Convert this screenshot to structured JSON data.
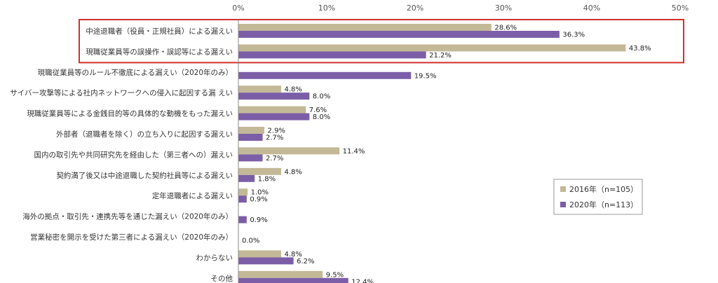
{
  "chart_data": {
    "type": "bar",
    "orientation": "horizontal",
    "title": "",
    "xlabel": "",
    "ylabel": "",
    "xlim": [
      0,
      50
    ],
    "x_ticks": [
      "0%",
      "10%",
      "20%",
      "30%",
      "40%",
      "50%"
    ],
    "grid": false,
    "legend_position": "right",
    "categories": [
      "中途退職者（役員・正規社員）による漏えい",
      "現職従業員等の誤操作・誤認等による漏えい",
      "現職従業員等のルール不徹底による漏えい（2020年のみ）",
      "サイバー攻撃等による社内ネットワークへの侵入に起因する漏 えい",
      "現職従業員等による金銭目的等の具体的な動機をもった漏えい",
      "外部者（退職者を除く）の立ち入りに起因する漏えい",
      "国内の取引先や共同研究先を経由した（第三者への）漏えい",
      "契約満了後又は中途退職した契約社員等による漏えい",
      "定年退職者による漏えい",
      "海外の拠点・取引先・連携先等を通じた漏えい（2020年のみ）",
      "営業秘密を開示を受けた第三者による漏えい（2020年のみ）",
      "わからない",
      "その他"
    ],
    "series": [
      {
        "name": "2016年（n=105）",
        "color": "#c3b997",
        "values": [
          28.6,
          43.8,
          null,
          4.8,
          7.6,
          2.9,
          11.4,
          4.8,
          1.0,
          null,
          null,
          4.8,
          9.5
        ],
        "labels": [
          "28.6%",
          "43.8%",
          "",
          "4.8%",
          "7.6%",
          "2.9%",
          "11.4%",
          "4.8%",
          "1.0%",
          "",
          "",
          "4.8%",
          "9.5%"
        ]
      },
      {
        "name": "2020年（n=113）",
        "color": "#7b5ea7",
        "values": [
          36.3,
          21.2,
          19.5,
          8.0,
          8.0,
          2.7,
          2.7,
          1.8,
          0.9,
          0.9,
          0.0,
          6.2,
          12.4
        ],
        "labels": [
          "36.3%",
          "21.2%",
          "19.5%",
          "8.0%",
          "8.0%",
          "2.7%",
          "2.7%",
          "1.8%",
          "0.9%",
          "0.9%",
          "0.0%",
          "6.2%",
          "12.4%"
        ]
      }
    ],
    "highlight": {
      "categories": [
        0,
        1
      ],
      "color": "#d0312d"
    }
  }
}
